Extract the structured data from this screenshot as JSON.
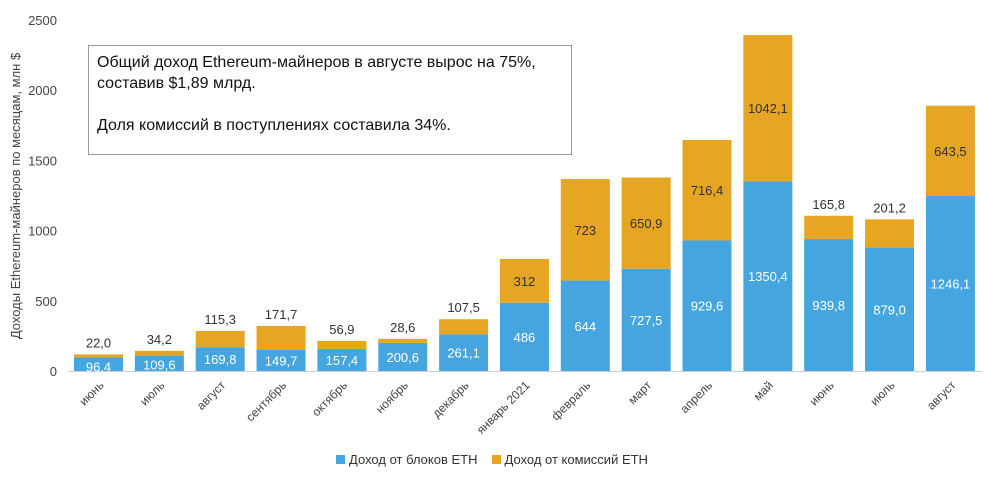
{
  "chart_data": {
    "type": "bar",
    "stacked": true,
    "ylabel": "Доходы Ethereum-майнеров по месяцам, млн $",
    "ylim": [
      0,
      2500
    ],
    "yticks": [
      "0",
      "500",
      "1000",
      "1500",
      "2000",
      "2500"
    ],
    "ytick_values": [
      0,
      500,
      1000,
      1500,
      2000,
      2500
    ],
    "grid": false,
    "legend_position": "bottom",
    "categories": [
      "июнь",
      "июль",
      "август",
      "сентябрь",
      "октябрь",
      "ноябрь",
      "декабрь",
      "январь 2021",
      "февраль",
      "март",
      "апрель",
      "май",
      "июнь",
      "июль",
      "август"
    ],
    "series": [
      {
        "name": "Доход от блоков ETH",
        "color": "#45a5de",
        "values": [
          96.4,
          109.6,
          169.8,
          149.7,
          157.4,
          200.6,
          261.1,
          486,
          644,
          727.5,
          929.6,
          1350.4,
          939.8,
          879.0,
          1246.1
        ],
        "labels": [
          "96,4",
          "109,6",
          "169,8",
          "149,7",
          "157,4",
          "200,6",
          "261,1",
          "486",
          "644",
          "727,5",
          "929,6",
          "1350,4",
          "939,8",
          "879,0",
          "1246,1"
        ]
      },
      {
        "name": "Доход от комиссий ETH",
        "color": "#e6a522",
        "values": [
          22.0,
          34.2,
          115.3,
          171.7,
          56.9,
          28.6,
          107.5,
          312,
          723,
          650.9,
          716.4,
          1042.1,
          165.8,
          201.2,
          643.5
        ],
        "labels": [
          "22,0",
          "34,2",
          "115,3",
          "171,7",
          "56,9",
          "28,6",
          "107,5",
          "312",
          "723",
          "650,9",
          "716,4",
          "1042,1",
          "165,8",
          "201,2",
          "643,5"
        ]
      }
    ],
    "annotation": {
      "line1": "Общий доход Ethereum-майнеров в августе вырос на 75%, составив $1,89 млрд.",
      "line2": "Доля комиссий в поступлениях составила 34%."
    }
  }
}
